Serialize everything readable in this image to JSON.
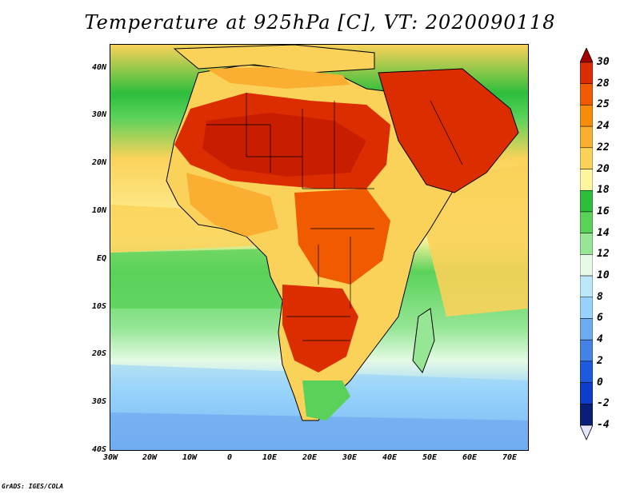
{
  "title": "Temperature at 925hPa [C], VT: 2020090118",
  "footer": "GrADS: IGES/COLA",
  "map": {
    "lat_labels": [
      "40N",
      "30N",
      "20N",
      "10N",
      "EQ",
      "10S",
      "20S",
      "30S",
      "40S"
    ],
    "lon_labels": [
      "30W",
      "20W",
      "10W",
      "0",
      "10E",
      "20E",
      "30E",
      "40E",
      "50E",
      "60E",
      "70E"
    ]
  },
  "colorbar": {
    "labels": [
      "30",
      "28",
      "25",
      "24",
      "22",
      "20",
      "18",
      "16",
      "14",
      "12",
      "10",
      "8",
      "6",
      "4",
      "2",
      "0",
      "-2",
      "-4"
    ],
    "colors": [
      "#a50000",
      "#dc2d00",
      "#f05a00",
      "#f58c0a",
      "#faaf32",
      "#fad25a",
      "#fff5a0",
      "#2dbe3c",
      "#5ad25a",
      "#96e696",
      "#e6fae6",
      "#bee6fa",
      "#96d2fa",
      "#6eaaf0",
      "#4682e6",
      "#1e5adc",
      "#0f3cc8",
      "#0a1e78",
      "#e6e6ff"
    ]
  }
}
